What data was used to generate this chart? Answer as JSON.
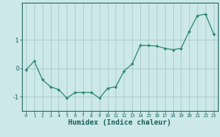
{
  "x": [
    0,
    1,
    2,
    3,
    4,
    5,
    6,
    7,
    8,
    9,
    10,
    11,
    12,
    13,
    14,
    15,
    16,
    17,
    18,
    19,
    20,
    21,
    22,
    23
  ],
  "y": [
    -0.05,
    0.25,
    -0.4,
    -0.65,
    -0.75,
    -1.05,
    -0.85,
    -0.85,
    -0.85,
    -1.05,
    -0.7,
    -0.65,
    -0.1,
    0.15,
    0.8,
    0.8,
    0.78,
    0.7,
    0.65,
    0.7,
    1.3,
    1.85,
    1.9,
    1.2
  ],
  "line_color": "#2e8b6e",
  "marker": "D",
  "marker_size": 2.2,
  "bg_color": "#cce8e8",
  "grid_color": "#aacccc",
  "tick_color": "#1a5f5f",
  "xlabel": "Humidex (Indice chaleur)",
  "yticks": [
    -1,
    0,
    1
  ],
  "ytick_labels": [
    "-1",
    "0",
    "1"
  ],
  "xlim": [
    -0.5,
    23.5
  ],
  "ylim": [
    -1.5,
    2.3
  ],
  "xlabel_fontsize": 7.5,
  "xtick_fontsize": 4.8,
  "ytick_fontsize": 6.5,
  "label_color": "#1a5f5f",
  "linewidth": 1.0
}
